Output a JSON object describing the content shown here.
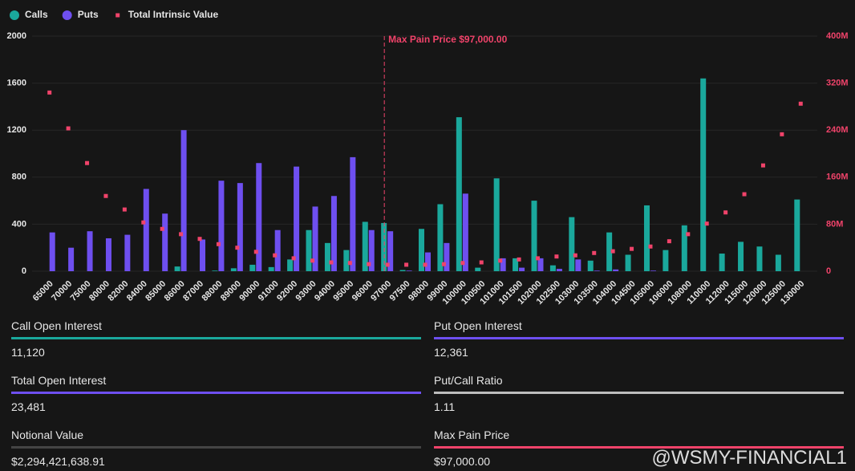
{
  "chart_data": {
    "type": "bar",
    "categories": [
      "65000",
      "70000",
      "75000",
      "80000",
      "82000",
      "84000",
      "85000",
      "86000",
      "87000",
      "88000",
      "89000",
      "90000",
      "91000",
      "92000",
      "93000",
      "94000",
      "95000",
      "96000",
      "97000",
      "97500",
      "98000",
      "99000",
      "100000",
      "100500",
      "101000",
      "101500",
      "102000",
      "102500",
      "103000",
      "103500",
      "104000",
      "104500",
      "105000",
      "106000",
      "108000",
      "110000",
      "112000",
      "115000",
      "120000",
      "125000",
      "130000"
    ],
    "series": [
      {
        "name": "Calls",
        "color": "#1aa89c",
        "values": [
          0,
          0,
          0,
          0,
          0,
          0,
          0,
          40,
          0,
          5,
          25,
          55,
          35,
          100,
          350,
          240,
          180,
          420,
          410,
          10,
          360,
          570,
          1310,
          30,
          790,
          110,
          600,
          50,
          460,
          90,
          330,
          140,
          560,
          180,
          390,
          1640,
          150,
          250,
          210,
          140,
          610
        ]
      },
      {
        "name": "Puts",
        "color": "#6e4ff0",
        "values": [
          330,
          200,
          340,
          280,
          310,
          700,
          490,
          1200,
          270,
          770,
          750,
          920,
          350,
          890,
          550,
          640,
          970,
          350,
          340,
          5,
          160,
          240,
          660,
          0,
          110,
          30,
          110,
          20,
          100,
          5,
          15,
          0,
          5,
          0,
          0,
          0,
          0,
          0,
          0,
          0,
          0
        ]
      },
      {
        "name": "Total Intrinsic Value",
        "color": "#f0436a",
        "axis": "y2",
        "type": "scatter",
        "values": [
          304000000,
          243000000,
          184000000,
          128000000,
          105000000,
          83000000,
          72000000,
          63000000,
          55000000,
          46000000,
          40000000,
          33000000,
          27000000,
          22000000,
          18000000,
          15000000,
          14000000,
          12000000,
          11000000,
          11000000,
          11000000,
          12000000,
          14000000,
          15000000,
          18000000,
          20000000,
          22000000,
          25000000,
          27000000,
          31000000,
          34000000,
          38000000,
          42000000,
          51000000,
          63000000,
          81000000,
          100000000,
          131000000,
          180000000,
          233000000,
          285000000
        ]
      }
    ],
    "ylim": [
      0,
      2000
    ],
    "yticks": [
      0,
      400,
      800,
      1200,
      1600,
      2000
    ],
    "y2lim": [
      0,
      400000000
    ],
    "y2ticks": [
      0,
      {
        "value": 80000000,
        "label": "80M"
      },
      {
        "value": 160000000,
        "label": "160M"
      },
      {
        "value": 240000000,
        "label": "240M"
      },
      {
        "value": 320000000,
        "label": "320M"
      },
      {
        "value": 400000000,
        "label": "400M"
      }
    ],
    "y2color": "#f0436a",
    "grid": true,
    "legend": "top-left",
    "annotation": {
      "text": "Max Pain Price $97,000.00",
      "x": "97000",
      "color": "#f0436a"
    }
  },
  "stats": [
    {
      "label": "Call Open Interest",
      "value": "11,120",
      "color": "#1aa89c"
    },
    {
      "label": "Put Open Interest",
      "value": "12,361",
      "color": "#6e4ff0"
    },
    {
      "label": "Total Open Interest",
      "value": "23,481",
      "color": "#6e4ff0"
    },
    {
      "label": "Put/Call Ratio",
      "value": "1.11",
      "color": "#bdbdbd"
    },
    {
      "label": "Notional Value",
      "value": "$2,294,421,638.91",
      "color": "#444444"
    },
    {
      "label": "Max Pain Price",
      "value": "$97,000.00",
      "color": "#f0436a"
    }
  ],
  "watermark": "@WSMY-FINANCIAL1"
}
